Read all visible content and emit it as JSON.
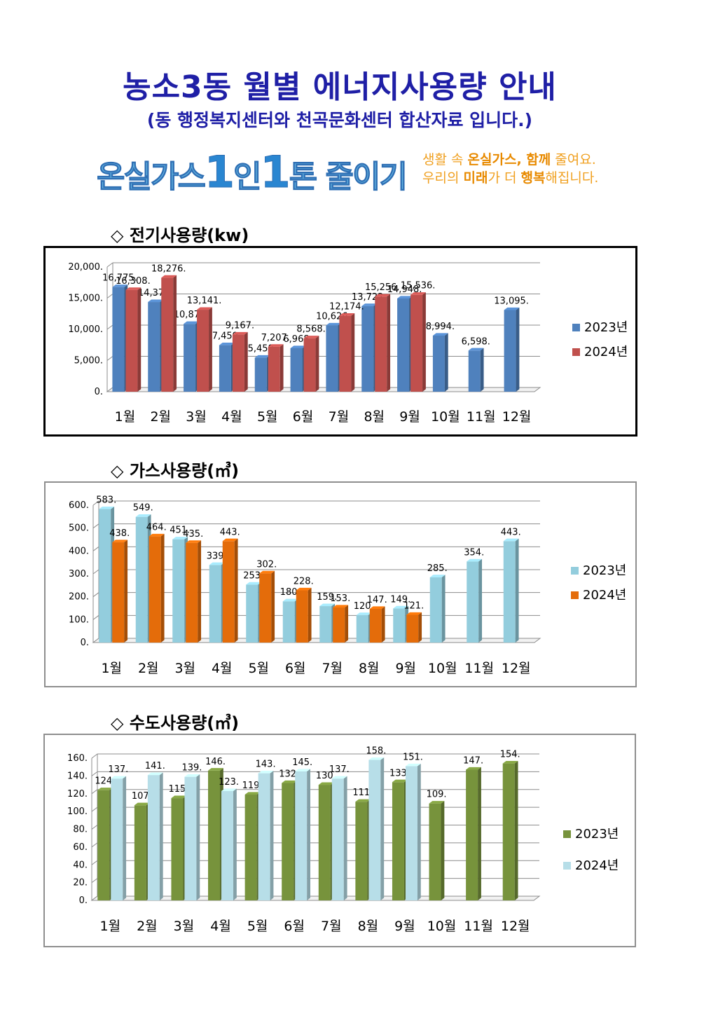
{
  "page": {
    "title": "농소3동 월별 에너지사용량 안내",
    "subtitle": "(동 행정복지센터와 천곡문화센터 합산자료 입니다.)"
  },
  "campaign": {
    "main_a": "온실가스",
    "num1": "1",
    "main_b": "인",
    "num2": "1",
    "main_c": "톤 줄이기",
    "slogan_line1_a": "생활 속 ",
    "slogan_line1_b": "온실가스, 함께",
    "slogan_line1_c": " 줄여요.",
    "slogan_line2_a": "우리의 ",
    "slogan_line2_b": "미래",
    "slogan_line2_c": "가 더 ",
    "slogan_line2_d": "행복",
    "slogan_line2_e": "해집니다."
  },
  "sections": {
    "electricity": "◇ 전기사용량(kw)",
    "gas": "◇ 가스사용량(㎥)",
    "water": "◇ 수도사용량(㎥)"
  },
  "chart_data": [
    {
      "id": "elec",
      "type": "bar",
      "categories": [
        "1월",
        "2월",
        "3월",
        "4월",
        "5월",
        "6월",
        "7월",
        "8월",
        "9월",
        "10월",
        "11월",
        "12월"
      ],
      "series": [
        {
          "name": "2023년",
          "color": "#4f81bd",
          "values": [
            16775,
            14376,
            10875,
            7459,
            5458,
            6968,
            10626,
            13722,
            14948,
            8994,
            6598,
            13095
          ]
        },
        {
          "name": "2024년",
          "color": "#c0504d",
          "values": [
            16308,
            18276,
            13141,
            9167,
            7207,
            8568,
            12174,
            15256,
            15536,
            null,
            null,
            null
          ]
        }
      ],
      "ylim": [
        0,
        20000
      ],
      "yticks": [
        "0.",
        "5,000.",
        "10,000.",
        "15,000.",
        "20,000."
      ],
      "labels": [
        [
          "16,775.",
          "14,376.",
          "10,875.",
          "7,459.",
          "5,458.",
          "6,968.",
          "10,626.",
          "13,722.",
          "14,948.",
          "8,994.",
          "6,598.",
          "13,095."
        ],
        [
          "16,308.",
          "18,276.",
          "13,141.",
          "9,167.",
          "7,207.",
          "8,568.",
          "12,174.",
          "15,256.",
          "15,536.",
          "",
          "",
          ""
        ]
      ],
      "legend_position": "right"
    },
    {
      "id": "gas",
      "type": "bar",
      "categories": [
        "1월",
        "2월",
        "3월",
        "4월",
        "5월",
        "6월",
        "7월",
        "8월",
        "9월",
        "10월",
        "11월",
        "12월"
      ],
      "series": [
        {
          "name": "2023년",
          "color": "#93cddd",
          "values": [
            583,
            549,
            451,
            339,
            253,
            180,
            159,
            120,
            149,
            285,
            354,
            443
          ]
        },
        {
          "name": "2024년",
          "color": "#e46c0a",
          "values": [
            438,
            464,
            435,
            443,
            302,
            228,
            153,
            147,
            121,
            null,
            null,
            null
          ]
        }
      ],
      "ylim": [
        0,
        600
      ],
      "yticks": [
        "0.",
        "100.",
        "200.",
        "300.",
        "400.",
        "500.",
        "600."
      ],
      "labels": [
        [
          "583.",
          "549.",
          "451.",
          "339.",
          "253.",
          "180.",
          "159.",
          "120.",
          "149.",
          "285.",
          "354.",
          "443."
        ],
        [
          "438.",
          "464.",
          "435.",
          "443.",
          "302.",
          "228.",
          "153.",
          "147.",
          "121.",
          "",
          "",
          ""
        ]
      ],
      "legend_position": "right"
    },
    {
      "id": "water",
      "type": "bar",
      "categories": [
        "1월",
        "2월",
        "3월",
        "4월",
        "5월",
        "6월",
        "7월",
        "8월",
        "9월",
        "10월",
        "11월",
        "12월"
      ],
      "series": [
        {
          "name": "2023년",
          "color": "#77933c",
          "values": [
            124,
            107,
            115,
            146,
            119,
            132,
            130,
            111,
            133,
            109,
            147,
            154
          ]
        },
        {
          "name": "2024년",
          "color": "#b7dee8",
          "values": [
            137,
            141,
            139,
            123,
            143,
            145,
            137,
            158,
            151,
            null,
            null,
            null
          ]
        }
      ],
      "ylim": [
        0,
        160
      ],
      "yticks": [
        "0.",
        "20.",
        "40.",
        "60.",
        "80.",
        "100.",
        "120.",
        "140.",
        "160."
      ],
      "labels": [
        [
          "124.",
          "107.",
          "115.",
          "146.",
          "119.",
          "132.",
          "130.",
          "111.",
          "133.",
          "109.",
          "147.",
          "154."
        ],
        [
          "137.",
          "141.",
          "139.",
          "123.",
          "143.",
          "145.",
          "137.",
          "158.",
          "151.",
          "",
          "",
          ""
        ]
      ],
      "legend_position": "right"
    }
  ]
}
